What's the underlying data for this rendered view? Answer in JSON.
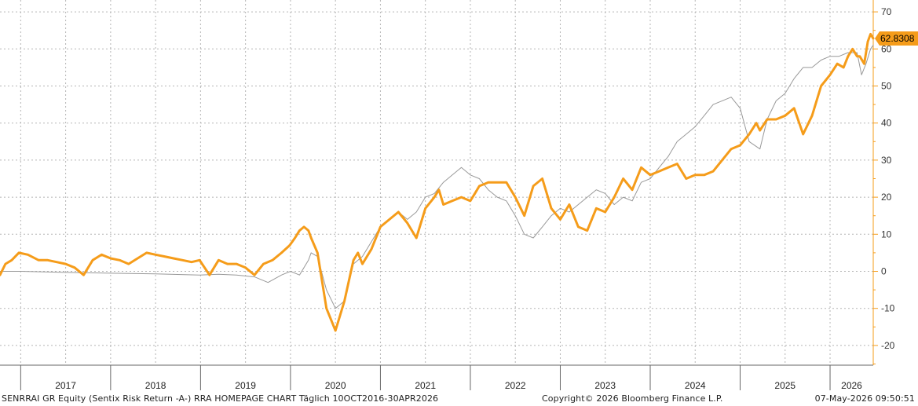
{
  "chart_data": {
    "type": "line",
    "y_axis_side": "right",
    "ylim": [
      -25,
      72
    ],
    "y_ticks": [
      -20,
      -10,
      0,
      10,
      20,
      30,
      40,
      50,
      60,
      70
    ],
    "y_tick_labels": [
      "-20",
      "-10",
      "0",
      "10",
      "20",
      "30",
      "40",
      "50",
      "60",
      "70"
    ],
    "x_range": [
      2016.77,
      2026.48
    ],
    "x_tick_labels": [
      "2017",
      "2018",
      "2019",
      "2020",
      "2021",
      "2022",
      "2023",
      "2024",
      "2025",
      "2026"
    ],
    "grid": true,
    "last_value_label": "62.8308",
    "accent_color": "#f59c1a",
    "comparison_color": "#999999",
    "series": [
      {
        "role": "primary",
        "color": "#f59c1a",
        "x": [
          2016.77,
          2016.83,
          2016.9,
          2016.98,
          2017.08,
          2017.2,
          2017.3,
          2017.4,
          2017.5,
          2017.6,
          2017.7,
          2017.8,
          2017.9,
          2018.0,
          2018.1,
          2018.2,
          2018.3,
          2018.4,
          2018.5,
          2018.6,
          2018.7,
          2018.8,
          2018.9,
          2018.99,
          2019.1,
          2019.2,
          2019.3,
          2019.4,
          2019.5,
          2019.6,
          2019.7,
          2019.8,
          2019.9,
          2019.99,
          2020.05,
          2020.1,
          2020.15,
          2020.2,
          2020.23,
          2020.3,
          2020.4,
          2020.5,
          2020.6,
          2020.7,
          2020.75,
          2020.8,
          2020.9,
          2021.0,
          2021.1,
          2021.2,
          2021.3,
          2021.4,
          2021.5,
          2021.6,
          2021.65,
          2021.7,
          2021.8,
          2021.9,
          2021.95,
          2022.0,
          2022.05,
          2022.1,
          2022.15,
          2022.2,
          2022.3,
          2022.4,
          2022.5,
          2022.6,
          2022.7,
          2022.8,
          2022.9,
          2023.0,
          2023.1,
          2023.2,
          2023.3,
          2023.4,
          2023.5,
          2023.6,
          2023.7,
          2023.8,
          2023.9,
          2024.0,
          2024.1,
          2024.2,
          2024.3,
          2024.4,
          2024.5,
          2024.6,
          2024.7,
          2024.8,
          2024.9,
          2025.0,
          2025.1,
          2025.18,
          2025.22,
          2025.3,
          2025.4,
          2025.5,
          2025.6,
          2025.7,
          2025.8,
          2025.9,
          2026.0,
          2026.08,
          2026.15,
          2026.2,
          2026.25,
          2026.3,
          2026.33,
          2026.38,
          2026.42,
          2026.45,
          2026.48
        ],
        "y": [
          -1,
          2,
          3,
          5,
          4.5,
          3,
          3,
          2.5,
          2,
          1,
          -1,
          3,
          4.5,
          3.5,
          3,
          2,
          3.5,
          5,
          4.5,
          4,
          3.5,
          3,
          2.5,
          3,
          -1,
          3,
          2,
          2,
          1,
          -1,
          2,
          3,
          5,
          7,
          9,
          11,
          12,
          11,
          9,
          5,
          -10,
          -16,
          -8,
          3,
          5,
          2,
          6,
          12,
          14,
          16,
          13,
          9,
          17,
          20,
          22,
          18,
          19,
          20,
          19.5,
          19,
          21,
          23,
          23.5,
          24,
          24,
          24,
          20,
          15,
          23,
          25,
          17,
          14,
          18,
          12,
          11,
          17,
          16,
          20,
          25,
          22,
          28,
          26,
          27,
          28,
          29,
          25,
          26,
          26,
          27,
          30,
          33,
          34,
          37,
          40,
          38,
          41,
          41,
          42,
          44,
          37,
          42,
          50,
          53,
          56,
          55,
          58,
          60,
          58,
          58,
          56,
          62,
          64,
          62.83
        ]
      },
      {
        "role": "comparison",
        "color": "#999999",
        "x": [
          2016.77,
          2017.0,
          2017.5,
          2018.0,
          2018.5,
          2018.99,
          2019.2,
          2019.4,
          2019.6,
          2019.75,
          2019.9,
          2020.0,
          2020.1,
          2020.2,
          2020.23,
          2020.3,
          2020.4,
          2020.5,
          2020.6,
          2020.7,
          2020.8,
          2020.9,
          2021.0,
          2021.1,
          2021.2,
          2021.3,
          2021.4,
          2021.5,
          2021.6,
          2021.7,
          2021.8,
          2021.9,
          2022.0,
          2022.1,
          2022.2,
          2022.3,
          2022.4,
          2022.5,
          2022.6,
          2022.7,
          2022.8,
          2022.9,
          2023.0,
          2023.1,
          2023.2,
          2023.3,
          2023.4,
          2023.5,
          2023.6,
          2023.7,
          2023.8,
          2023.9,
          2024.0,
          2024.1,
          2024.2,
          2024.3,
          2024.4,
          2024.5,
          2024.6,
          2024.7,
          2024.8,
          2024.9,
          2025.0,
          2025.1,
          2025.22,
          2025.3,
          2025.4,
          2025.5,
          2025.6,
          2025.7,
          2025.8,
          2025.9,
          2026.0,
          2026.1,
          2026.2,
          2026.3,
          2026.35,
          2026.4,
          2026.45,
          2026.48
        ],
        "y": [
          0,
          0,
          -0.3,
          -0.5,
          -0.7,
          -1,
          -0.8,
          -1,
          -1.5,
          -3,
          -1,
          0,
          -1,
          3,
          5,
          4,
          -5,
          -10,
          -8,
          2,
          4,
          8,
          12,
          14,
          16,
          14,
          16,
          20,
          21,
          24,
          26,
          28,
          26,
          25,
          22,
          20,
          19,
          15,
          10,
          9,
          12,
          15,
          17,
          16,
          18,
          20,
          22,
          21,
          18,
          20,
          19,
          24,
          25,
          28,
          31,
          35,
          37,
          39,
          42,
          45,
          46,
          47,
          44,
          35,
          33,
          41,
          46,
          48,
          52,
          55,
          55,
          57,
          58,
          58,
          59,
          59,
          53,
          56,
          60,
          61
        ]
      }
    ]
  },
  "footer": {
    "left": "SENRRAI GR Equity (Sentix Risk Return -A-) RRA HOMEPAGE CHART Täglich 10OCT2016-30APR2026",
    "center": "Copyright© 2026 Bloomberg Finance L.P.",
    "right": "07-May-2026 09:50:51"
  }
}
